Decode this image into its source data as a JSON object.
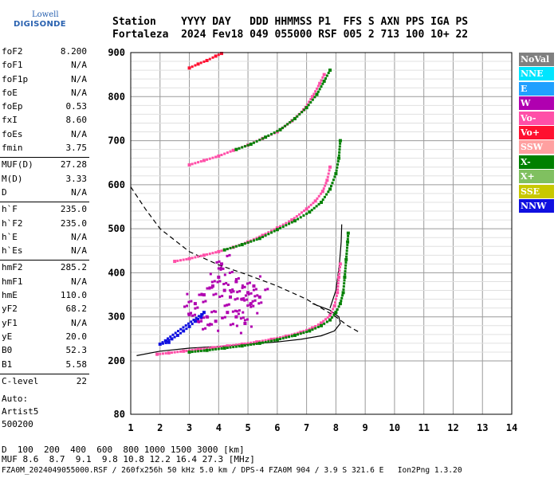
{
  "logo": {
    "line1": "Lowell",
    "line2": "DIGISONDE"
  },
  "header": {
    "line1": "Station    YYYY DAY   DDD HHMMSS P1  FFS S AXN PPS IGA PS",
    "line2": "Fortaleza  2024 Fev18 049 055000 RSF 005 2 713 100 10+ 22"
  },
  "params": [
    {
      "name": "foF2",
      "value": "8.200"
    },
    {
      "name": "foF1",
      "value": "N/A"
    },
    {
      "name": "foF1p",
      "value": "N/A"
    },
    {
      "name": "foE",
      "value": "N/A"
    },
    {
      "name": "foEp",
      "value": "0.53"
    },
    {
      "name": "fxI",
      "value": "8.60"
    },
    {
      "name": "foEs",
      "value": "N/A"
    },
    {
      "name": "fmin",
      "value": "3.75"
    },
    {
      "name": "MUF(D)",
      "value": "27.28"
    },
    {
      "name": "M(D)",
      "value": "3.33"
    },
    {
      "name": "D",
      "value": "N/A"
    },
    {
      "name": "h`F",
      "value": "235.0"
    },
    {
      "name": "h`F2",
      "value": "235.0"
    },
    {
      "name": "h`E",
      "value": "N/A"
    },
    {
      "name": "h`Es",
      "value": "N/A"
    },
    {
      "name": "hmF2",
      "value": "285.2"
    },
    {
      "name": "hmF1",
      "value": "N/A"
    },
    {
      "name": "hmE",
      "value": "110.0"
    },
    {
      "name": "yF2",
      "value": "68.2"
    },
    {
      "name": "yF1",
      "value": "N/A"
    },
    {
      "name": "yE",
      "value": "20.0"
    },
    {
      "name": "B0",
      "value": "52.3"
    },
    {
      "name": "B1",
      "value": "5.58"
    },
    {
      "name": "C-level",
      "value": "22"
    }
  ],
  "auto": {
    "line1": "Auto:",
    "line2": "Artist5",
    "line3": "500200"
  },
  "legend": [
    {
      "label": "NoVal",
      "color": "#808080"
    },
    {
      "label": "NNE",
      "color": "#00e5ff"
    },
    {
      "label": "E",
      "color": "#1fa0ff"
    },
    {
      "label": "W",
      "color": "#b000b0"
    },
    {
      "label": "Vo-",
      "color": "#ff4fa8"
    },
    {
      "label": "Vo+",
      "color": "#ff1030"
    },
    {
      "label": "SSW",
      "color": "#ffa0a0"
    },
    {
      "label": "X-",
      "color": "#008000"
    },
    {
      "label": "X+",
      "color": "#80c060"
    },
    {
      "label": "SSE",
      "color": "#c8c800"
    },
    {
      "label": "NNW",
      "color": "#1010e0"
    }
  ],
  "footer": {
    "d_label": "D",
    "d_values": "  100  200  400  600  800 1000 1500 3000 [km]",
    "muf_label": "MUF",
    "muf_values": " 8.6  8.7  9.1  9.8 10.8 12.2 16.4 27.3 [MHz]",
    "source": "FZA0M_2024049055000.RSF / 260fx256h 50 kHz 5.0 km / DPS-4 FZA0M 904 / 3.9 S 321.6 E   Ion2Png 1.3.20"
  },
  "chart_data": {
    "type": "scatter",
    "xlim": [
      1,
      14
    ],
    "ylim": [
      80,
      900
    ],
    "xticks": [
      "1",
      "2",
      "3",
      "4",
      "5",
      "6",
      "7",
      "8",
      "9",
      "10",
      "11",
      "12",
      "13",
      "14"
    ],
    "yticks": [
      {
        "v": 900,
        "label": "900"
      },
      {
        "v": 800,
        "label": "800"
      },
      {
        "v": 700,
        "label": "700"
      },
      {
        "v": 600,
        "label": "600"
      },
      {
        "v": 500,
        "label": "500"
      },
      {
        "v": 400,
        "label": "400"
      },
      {
        "v": 300,
        "label": "300"
      },
      {
        "v": 200,
        "label": "200"
      },
      {
        "v": 80,
        "label": "80"
      }
    ],
    "grid": true,
    "series": [
      {
        "mode": "O-trace",
        "color": "#ff4fa8",
        "points": [
          [
            1.9,
            215
          ],
          [
            2.3,
            218
          ],
          [
            2.8,
            222
          ],
          [
            3.3,
            226
          ],
          [
            3.8,
            230
          ],
          [
            4.3,
            234
          ],
          [
            4.8,
            238
          ],
          [
            5.3,
            243
          ],
          [
            5.8,
            249
          ],
          [
            6.3,
            256
          ],
          [
            6.8,
            265
          ],
          [
            7.2,
            275
          ],
          [
            7.5,
            286
          ],
          [
            7.8,
            303
          ],
          [
            7.95,
            325
          ],
          [
            8.05,
            355
          ],
          [
            8.1,
            390
          ],
          [
            8.15,
            420
          ]
        ]
      },
      {
        "mode": "X-trace",
        "color": "#008000",
        "points": [
          [
            3.0,
            220
          ],
          [
            3.6,
            224
          ],
          [
            4.2,
            229
          ],
          [
            4.8,
            234
          ],
          [
            5.4,
            240
          ],
          [
            6.0,
            248
          ],
          [
            6.6,
            258
          ],
          [
            7.1,
            268
          ],
          [
            7.5,
            280
          ],
          [
            7.8,
            293
          ],
          [
            8.0,
            310
          ],
          [
            8.15,
            330
          ],
          [
            8.25,
            355
          ],
          [
            8.3,
            390
          ],
          [
            8.35,
            430
          ],
          [
            8.4,
            470
          ],
          [
            8.42,
            490
          ]
        ]
      },
      {
        "mode": "O-2hop",
        "color": "#ff4fa8",
        "points": [
          [
            2.5,
            426
          ],
          [
            3.0,
            432
          ],
          [
            3.5,
            440
          ],
          [
            4.0,
            448
          ],
          [
            4.5,
            458
          ],
          [
            5.0,
            470
          ],
          [
            5.5,
            485
          ],
          [
            6.0,
            502
          ],
          [
            6.5,
            520
          ],
          [
            7.0,
            545
          ],
          [
            7.3,
            563
          ],
          [
            7.55,
            585
          ],
          [
            7.7,
            610
          ],
          [
            7.8,
            640
          ]
        ]
      },
      {
        "mode": "X-2hop",
        "color": "#008000",
        "points": [
          [
            4.2,
            452
          ],
          [
            4.8,
            464
          ],
          [
            5.4,
            478
          ],
          [
            6.0,
            498
          ],
          [
            6.6,
            518
          ],
          [
            7.1,
            538
          ],
          [
            7.5,
            560
          ],
          [
            7.8,
            590
          ],
          [
            8.0,
            625
          ],
          [
            8.1,
            660
          ],
          [
            8.15,
            700
          ]
        ]
      },
      {
        "mode": "O-3hop",
        "color": "#ff4fa8",
        "points": [
          [
            3.0,
            645
          ],
          [
            3.5,
            655
          ],
          [
            4.0,
            665
          ],
          [
            4.5,
            678
          ],
          [
            5.0,
            690
          ],
          [
            5.5,
            705
          ],
          [
            6.0,
            720
          ],
          [
            6.5,
            745
          ],
          [
            6.9,
            770
          ],
          [
            7.2,
            800
          ],
          [
            7.45,
            830
          ],
          [
            7.6,
            850
          ]
        ]
      },
      {
        "mode": "X-3hop",
        "color": "#008000",
        "points": [
          [
            4.6,
            680
          ],
          [
            5.1,
            692
          ],
          [
            5.6,
            708
          ],
          [
            6.1,
            725
          ],
          [
            6.6,
            750
          ],
          [
            7.0,
            775
          ],
          [
            7.35,
            805
          ],
          [
            7.6,
            835
          ],
          [
            7.8,
            860
          ]
        ]
      },
      {
        "mode": "O-4hop",
        "color": "#ff1030",
        "points": [
          [
            3.0,
            865
          ],
          [
            3.3,
            874
          ],
          [
            3.6,
            882
          ],
          [
            3.9,
            892
          ],
          [
            4.1,
            898
          ]
        ]
      },
      {
        "mode": "spread-F",
        "color": "#b000b0",
        "points": [
          [
            3.2,
            330
          ],
          [
            3.5,
            350
          ],
          [
            3.8,
            370
          ],
          [
            4.0,
            390
          ],
          [
            4.2,
            360
          ],
          [
            4.4,
            345
          ],
          [
            4.6,
            380
          ],
          [
            4.8,
            340
          ],
          [
            5.0,
            355
          ],
          [
            5.2,
            370
          ],
          [
            5.4,
            345
          ],
          [
            3.6,
            300
          ],
          [
            3.9,
            290
          ],
          [
            4.3,
            310
          ],
          [
            4.6,
            300
          ],
          [
            4.9,
            285
          ],
          [
            3.0,
            305
          ],
          [
            3.3,
            290
          ],
          [
            5.1,
            330
          ],
          [
            4.1,
            420
          ]
        ]
      },
      {
        "mode": "NNW",
        "color": "#1010e0",
        "points": [
          [
            2.2,
            245
          ],
          [
            2.4,
            250
          ],
          [
            2.6,
            258
          ],
          [
            2.8,
            268
          ],
          [
            3.0,
            278
          ],
          [
            3.2,
            290
          ],
          [
            3.4,
            300
          ],
          [
            3.5,
            310
          ],
          [
            2.0,
            238
          ],
          [
            2.3,
            242
          ]
        ]
      }
    ],
    "curves": [
      {
        "name": "profile",
        "style": "solid",
        "points": [
          [
            1.2,
            212
          ],
          [
            2.0,
            222
          ],
          [
            3.0,
            229
          ],
          [
            4.0,
            233
          ],
          [
            5.0,
            238
          ],
          [
            6.0,
            243
          ],
          [
            6.8,
            249
          ],
          [
            7.5,
            257
          ],
          [
            7.95,
            268
          ],
          [
            8.15,
            285
          ],
          [
            8.1,
            300
          ],
          [
            7.8,
            315
          ],
          [
            7.2,
            330
          ]
        ]
      },
      {
        "name": "profile-upper",
        "style": "solid",
        "points": [
          [
            7.8,
            320
          ],
          [
            8.0,
            360
          ],
          [
            8.12,
            420
          ],
          [
            8.18,
            470
          ],
          [
            8.2,
            510
          ]
        ]
      },
      {
        "name": "MUF",
        "style": "dashed",
        "points": [
          [
            1.0,
            595
          ],
          [
            1.5,
            545
          ],
          [
            2.0,
            500
          ],
          [
            3.0,
            448
          ],
          [
            4.0,
            418
          ],
          [
            5.0,
            395
          ],
          [
            6.0,
            370
          ],
          [
            7.0,
            340
          ],
          [
            8.0,
            300
          ],
          [
            8.4,
            280
          ],
          [
            8.8,
            265
          ]
        ]
      }
    ]
  }
}
